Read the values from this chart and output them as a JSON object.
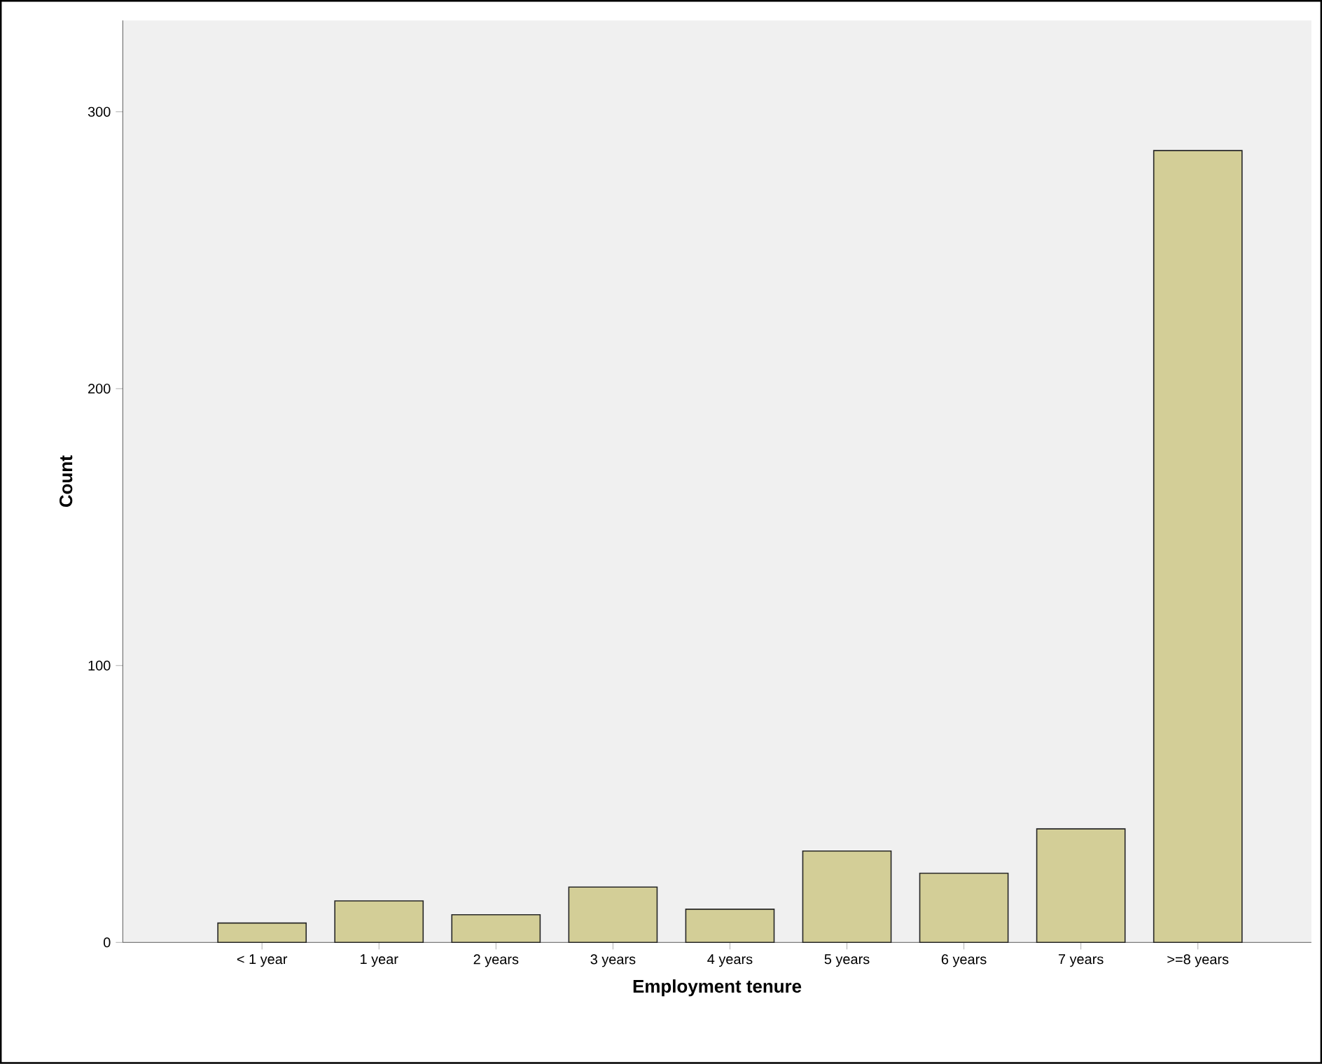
{
  "chart_data": {
    "type": "bar",
    "xlabel": "Employment tenure",
    "ylabel": "Count",
    "categories": [
      "< 1 year",
      "1 year",
      "2 years",
      "3 years",
      "4 years",
      "5 years",
      "6 years",
      "7 years",
      ">=8 years"
    ],
    "values": [
      7,
      15,
      10,
      20,
      12,
      33,
      25,
      41,
      286
    ],
    "color": "#d3ce97",
    "ylim": [
      0,
      333
    ],
    "yticks": [
      0,
      100,
      200,
      300
    ],
    "grid": false
  }
}
